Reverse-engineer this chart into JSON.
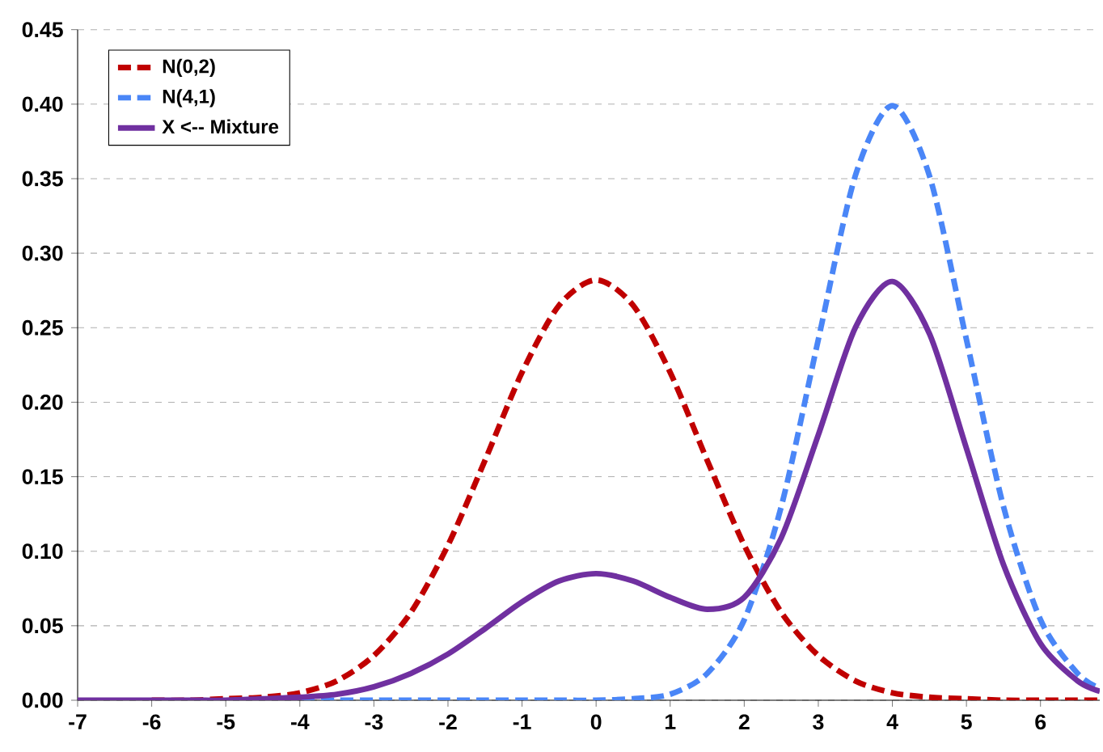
{
  "chart_data": {
    "type": "line",
    "x": [
      -7,
      -6.5,
      -6,
      -5.5,
      -5,
      -4.5,
      -4,
      -3.5,
      -3,
      -2.5,
      -2,
      -1.5,
      -1,
      -0.5,
      0,
      0.5,
      1,
      1.5,
      2,
      2.5,
      3,
      3.5,
      4,
      4.5,
      5,
      5.5,
      6,
      6.5,
      6.8
    ],
    "series": [
      {
        "name": "N(0,2)",
        "color": "#c00000",
        "line_style": "dashed",
        "values": [
          null,
          null,
          0.0,
          0.0,
          0.001,
          0.002,
          0.005,
          0.013,
          0.03,
          0.059,
          0.104,
          0.161,
          0.22,
          0.265,
          0.282,
          0.265,
          0.22,
          0.161,
          0.104,
          0.059,
          0.03,
          0.013,
          0.005,
          0.002,
          0.001,
          0.0,
          0.0,
          0.0,
          0.0
        ]
      },
      {
        "name": "N(4,1)",
        "color": "#4a86f7",
        "line_style": "dashed",
        "values": [
          null,
          null,
          null,
          null,
          null,
          0.0,
          0.0,
          0.0,
          0.0,
          0.0,
          0.0,
          0.0,
          0.0,
          0.0,
          0.0,
          0.001,
          0.004,
          0.018,
          0.054,
          0.13,
          0.242,
          0.352,
          0.399,
          0.352,
          0.242,
          0.13,
          0.054,
          0.018,
          0.008
        ]
      },
      {
        "name": "X <-- Mixture",
        "color": "#7030a0",
        "line_style": "solid",
        "values": [
          0.0,
          0.0,
          0.0,
          0.0,
          0.0,
          0.001,
          0.002,
          0.004,
          0.009,
          0.018,
          0.031,
          0.048,
          0.066,
          0.08,
          0.085,
          0.08,
          0.069,
          0.061,
          0.069,
          0.109,
          0.178,
          0.25,
          0.281,
          0.246,
          0.169,
          0.091,
          0.038,
          0.013,
          0.006
        ]
      }
    ],
    "xlim": [
      -7,
      6.8
    ],
    "xticks": [
      -7,
      -6,
      -5,
      -4,
      -3,
      -2,
      -1,
      0,
      1,
      2,
      3,
      4,
      5,
      6
    ],
    "ylim": [
      0,
      0.45
    ],
    "yticks": [
      {
        "value": 0,
        "label": "0.00"
      },
      {
        "value": 0.05,
        "label": "0.05"
      },
      {
        "value": 0.1,
        "label": "0.10"
      },
      {
        "value": 0.15,
        "label": "0.15"
      },
      {
        "value": 0.2,
        "label": "0.20"
      },
      {
        "value": 0.25,
        "label": "0.25"
      },
      {
        "value": 0.3,
        "label": "0.30"
      },
      {
        "value": 0.35,
        "label": "0.35"
      },
      {
        "value": 0.4,
        "label": "0.40"
      },
      {
        "value": 0.45,
        "label": "0.45"
      }
    ],
    "grid": "y",
    "legend": "top left",
    "marker": "none"
  }
}
